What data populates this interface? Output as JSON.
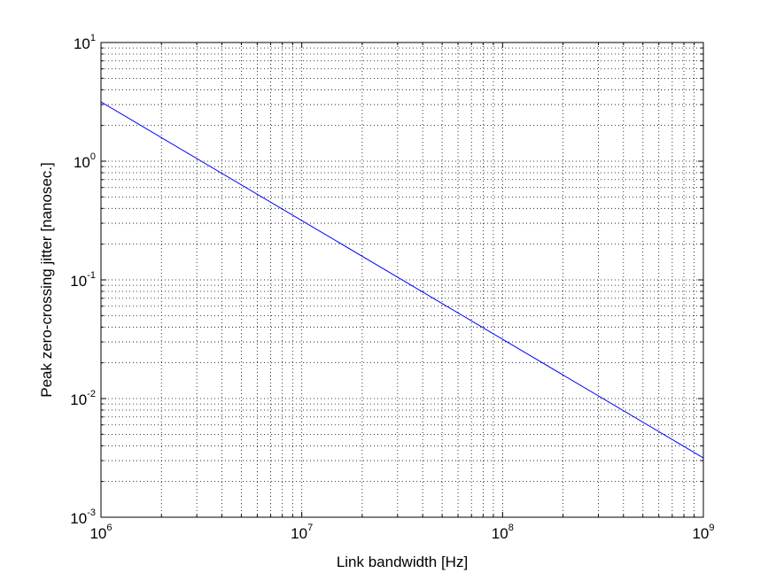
{
  "chart_data": {
    "type": "line",
    "xlabel": "Link bandwidth [Hz]",
    "ylabel": "Peak zero-crossing jitter [nanosec.]",
    "xscale": "log",
    "yscale": "log",
    "xlim": [
      1000000,
      1000000000
    ],
    "ylim": [
      0.001,
      10
    ],
    "x_ticks": [
      {
        "base": "10",
        "exp": "6",
        "value": 1000000
      },
      {
        "base": "10",
        "exp": "7",
        "value": 10000000
      },
      {
        "base": "10",
        "exp": "8",
        "value": 100000000
      },
      {
        "base": "10",
        "exp": "9",
        "value": 1000000000
      }
    ],
    "y_ticks": [
      {
        "base": "10",
        "exp": "-3",
        "value": 0.001
      },
      {
        "base": "10",
        "exp": "-2",
        "value": 0.01
      },
      {
        "base": "10",
        "exp": "-1",
        "value": 0.1
      },
      {
        "base": "10",
        "exp": "0",
        "value": 1
      },
      {
        "base": "10",
        "exp": "1",
        "value": 10
      }
    ],
    "grid": true,
    "grid_style": "dotted",
    "series": [
      {
        "color": "#0000ff",
        "x": [
          1000000,
          1000000000
        ],
        "y": [
          3.16,
          0.00316
        ]
      }
    ]
  }
}
